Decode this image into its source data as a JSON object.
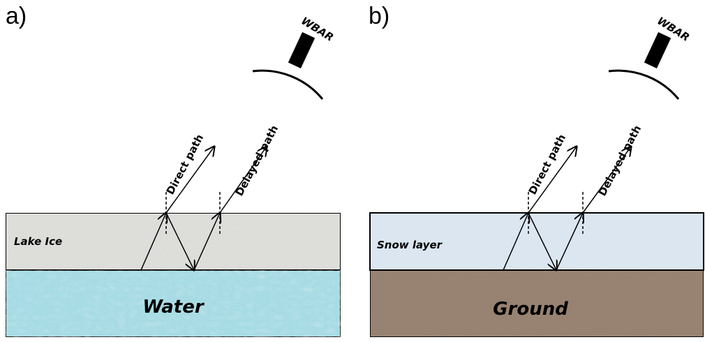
{
  "panels": [
    {
      "label": "a)",
      "instrument": "WBAR",
      "direct": "Direct path",
      "delayed": "Delayed path",
      "upper_layer": "Lake Ice",
      "lower_layer": "Water"
    },
    {
      "label": "b)",
      "instrument": "WBAR",
      "direct": "Direct path",
      "delayed": "Delayed path",
      "upper_layer": "Snow layer",
      "lower_layer": "Ground"
    }
  ]
}
